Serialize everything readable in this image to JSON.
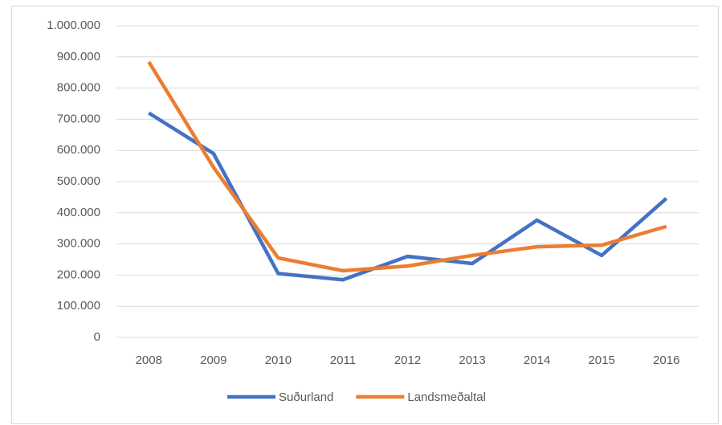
{
  "chart_data": {
    "type": "line",
    "categories": [
      "2008",
      "2009",
      "2010",
      "2011",
      "2012",
      "2013",
      "2014",
      "2015",
      "2016"
    ],
    "series": [
      {
        "name": "Suðurland",
        "color": "#4472c4",
        "values": [
          720000,
          590000,
          205000,
          185000,
          260000,
          237000,
          376000,
          263000,
          446000
        ]
      },
      {
        "name": "Landsmeðaltal",
        "color": "#ed7d31",
        "values": [
          884000,
          546000,
          255000,
          214000,
          229000,
          263000,
          291000,
          296000,
          356000
        ]
      }
    ],
    "ylim": [
      0,
      1000000
    ],
    "yticks": [
      0,
      {
        "value": 100000,
        "label": "100.000"
      },
      {
        "value": 200000,
        "label": "200.000"
      },
      {
        "value": 300000,
        "label": "300.000"
      },
      {
        "value": 400000,
        "label": "400.000"
      },
      {
        "value": 500000,
        "label": "500.000"
      },
      {
        "value": 600000,
        "label": "600.000"
      },
      {
        "value": 700000,
        "label": "700.000"
      },
      {
        "value": 800000,
        "label": "800.000"
      },
      {
        "value": 900000,
        "label": "900.000"
      },
      {
        "value": 1000000,
        "label": "1.000.000"
      }
    ],
    "grid": true,
    "legend": "bottom"
  }
}
